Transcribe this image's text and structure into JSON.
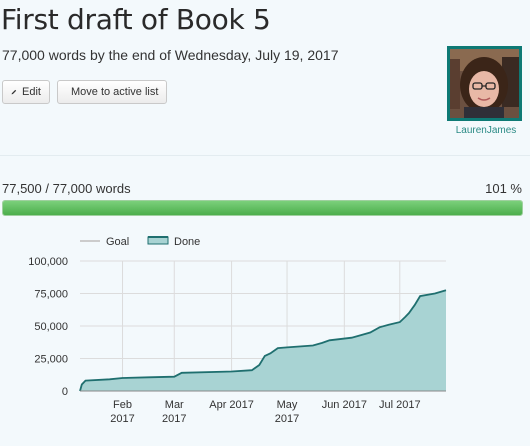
{
  "page": {
    "title": "First draft of Book 5",
    "subtitle": "77,000 words by the end of Wednesday, July 19, 2017"
  },
  "buttons": {
    "edit_label": "Edit",
    "move_label": "Move to active list"
  },
  "user": {
    "name": "LaurenJames"
  },
  "progress": {
    "text": "77,500 / 77,000 words",
    "percent_text": "101 %",
    "fraction": 1.0
  },
  "colors": {
    "accent": "#0e7a75",
    "progress": "#5cb85c",
    "done_fill": "#a8d3d3",
    "done_line": "#1f6f6f",
    "goal_line": "#cccccc"
  },
  "chart_data": {
    "type": "area",
    "title": "",
    "legend": [
      {
        "name": "Goal",
        "color": "#cccccc"
      },
      {
        "name": "Done",
        "color": "#1f6f6f"
      }
    ],
    "legend_position": "top-left",
    "ylim": [
      0,
      100000
    ],
    "yticks": [
      "0",
      "25,000",
      "50,000",
      "75,000",
      "100,000"
    ],
    "xticks": [
      {
        "date": "2017-02-01",
        "line1": "Feb",
        "line2": "2017"
      },
      {
        "date": "2017-03-01",
        "line1": "Mar",
        "line2": "2017"
      },
      {
        "date": "2017-04-01",
        "line1": "Apr 2017",
        "line2": ""
      },
      {
        "date": "2017-05-01",
        "line1": "May",
        "line2": "2017"
      },
      {
        "date": "2017-06-01",
        "line1": "Jun 2017",
        "line2": ""
      },
      {
        "date": "2017-07-01",
        "line1": "Jul 2017",
        "line2": ""
      }
    ],
    "xlim": [
      "2017-01-09",
      "2017-07-26"
    ],
    "series": [
      {
        "name": "Done",
        "x": [
          "2017-01-09",
          "2017-01-10",
          "2017-01-12",
          "2017-01-25",
          "2017-02-01",
          "2017-02-15",
          "2017-03-01",
          "2017-03-05",
          "2017-04-01",
          "2017-04-12",
          "2017-04-16",
          "2017-04-19",
          "2017-04-22",
          "2017-04-26",
          "2017-05-01",
          "2017-05-15",
          "2017-05-20",
          "2017-05-24",
          "2017-06-05",
          "2017-06-10",
          "2017-06-15",
          "2017-06-20",
          "2017-06-25",
          "2017-07-01",
          "2017-07-04",
          "2017-07-06",
          "2017-07-08",
          "2017-07-09",
          "2017-07-12",
          "2017-07-20",
          "2017-07-26"
        ],
        "values": [
          0,
          5000,
          8000,
          9000,
          10000,
          10500,
          11000,
          14000,
          15000,
          16000,
          20000,
          27000,
          29000,
          33000,
          33500,
          35000,
          37000,
          39000,
          41000,
          43000,
          45000,
          49000,
          51000,
          53000,
          57000,
          60000,
          64000,
          66000,
          73000,
          75000,
          77500
        ]
      }
    ]
  }
}
